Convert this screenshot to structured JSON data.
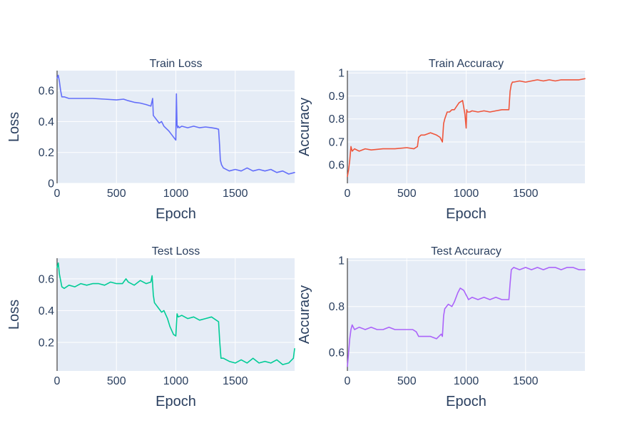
{
  "chart_data": [
    {
      "id": "train_loss",
      "type": "line",
      "title": "Train Loss",
      "xlabel": "Epoch",
      "ylabel": "Loss",
      "xlim": [
        0,
        2000
      ],
      "ylim": [
        0,
        0.73
      ],
      "xticks": [
        0,
        500,
        1000,
        1500
      ],
      "xtick_labels": [
        "0",
        "500",
        "1000",
        "1500"
      ],
      "yticks": [
        0,
        0.2,
        0.4,
        0.6
      ],
      "ytick_labels": [
        "0",
        "0.2",
        "0.4",
        "0.6"
      ],
      "color": "#636efa",
      "series": [
        {
          "x": [
            0,
            10,
            20,
            30,
            40,
            60,
            100,
            150,
            200,
            300,
            400,
            500,
            560,
            600,
            650,
            700,
            750,
            790,
            805,
            810,
            830,
            860,
            880,
            900,
            940,
            960,
            990,
            1000,
            1005,
            1010,
            1015,
            1020,
            1030,
            1050,
            1100,
            1150,
            1200,
            1250,
            1300,
            1340,
            1360,
            1368,
            1375,
            1385,
            1400,
            1450,
            1500,
            1550,
            1600,
            1650,
            1700,
            1750,
            1800,
            1850,
            1900,
            1950,
            2000
          ],
          "y": [
            0.68,
            0.7,
            0.66,
            0.6,
            0.56,
            0.56,
            0.55,
            0.55,
            0.55,
            0.55,
            0.545,
            0.54,
            0.545,
            0.535,
            0.525,
            0.52,
            0.51,
            0.5,
            0.55,
            0.44,
            0.42,
            0.39,
            0.4,
            0.37,
            0.34,
            0.32,
            0.29,
            0.28,
            0.58,
            0.38,
            0.36,
            0.37,
            0.36,
            0.37,
            0.36,
            0.37,
            0.36,
            0.365,
            0.36,
            0.355,
            0.35,
            0.25,
            0.15,
            0.12,
            0.1,
            0.08,
            0.09,
            0.08,
            0.1,
            0.08,
            0.09,
            0.08,
            0.09,
            0.07,
            0.08,
            0.06,
            0.07
          ]
        }
      ]
    },
    {
      "id": "train_acc",
      "type": "line",
      "title": "Train Accuracy",
      "xlabel": "Epoch",
      "ylabel": "Accuracy",
      "xlim": [
        0,
        2000
      ],
      "ylim": [
        0.52,
        1.01
      ],
      "xticks": [
        0,
        500,
        1000,
        1500
      ],
      "xtick_labels": [
        "0",
        "500",
        "1000",
        "1500"
      ],
      "yticks": [
        0.6,
        0.7,
        0.8,
        0.9,
        1.0
      ],
      "ytick_labels": [
        "0.6",
        "0.7",
        "0.8",
        "0.9",
        "1"
      ],
      "color": "#ef553b",
      "series": [
        {
          "x": [
            0,
            10,
            20,
            30,
            40,
            60,
            100,
            150,
            200,
            300,
            400,
            500,
            560,
            590,
            600,
            620,
            650,
            700,
            750,
            780,
            800,
            810,
            820,
            840,
            860,
            880,
            900,
            940,
            970,
            990,
            1000,
            1005,
            1010,
            1030,
            1050,
            1100,
            1150,
            1200,
            1250,
            1300,
            1340,
            1360,
            1370,
            1380,
            1390,
            1400,
            1450,
            1500,
            1550,
            1600,
            1650,
            1700,
            1750,
            1800,
            1850,
            1900,
            1950,
            2000
          ],
          "y": [
            0.55,
            0.58,
            0.62,
            0.68,
            0.66,
            0.67,
            0.66,
            0.67,
            0.665,
            0.67,
            0.67,
            0.675,
            0.67,
            0.68,
            0.72,
            0.73,
            0.73,
            0.74,
            0.73,
            0.72,
            0.7,
            0.78,
            0.8,
            0.83,
            0.83,
            0.84,
            0.84,
            0.87,
            0.88,
            0.82,
            0.76,
            0.84,
            0.83,
            0.83,
            0.835,
            0.83,
            0.835,
            0.83,
            0.835,
            0.84,
            0.84,
            0.84,
            0.92,
            0.95,
            0.96,
            0.96,
            0.965,
            0.96,
            0.965,
            0.97,
            0.965,
            0.97,
            0.965,
            0.97,
            0.97,
            0.97,
            0.97,
            0.975
          ]
        }
      ]
    },
    {
      "id": "test_loss",
      "type": "line",
      "title": "Test Loss",
      "xlabel": "Epoch",
      "ylabel": "Loss",
      "xlim": [
        0,
        2000
      ],
      "ylim": [
        0.02,
        0.73
      ],
      "xticks": [
        0,
        500,
        1000,
        1500
      ],
      "xtick_labels": [
        "0",
        "500",
        "1000",
        "1500"
      ],
      "yticks": [
        0.2,
        0.4,
        0.6
      ],
      "ytick_labels": [
        "0.2",
        "0.4",
        "0.6"
      ],
      "color": "#00cc96",
      "series": [
        {
          "x": [
            0,
            10,
            20,
            40,
            60,
            100,
            150,
            200,
            250,
            300,
            350,
            400,
            450,
            500,
            550,
            580,
            600,
            650,
            700,
            750,
            790,
            800,
            810,
            820,
            850,
            880,
            900,
            930,
            950,
            980,
            1000,
            1010,
            1020,
            1050,
            1100,
            1150,
            1200,
            1250,
            1300,
            1340,
            1360,
            1370,
            1380,
            1400,
            1450,
            1500,
            1550,
            1600,
            1650,
            1700,
            1750,
            1800,
            1850,
            1900,
            1950,
            1990,
            2000
          ],
          "y": [
            0.67,
            0.7,
            0.63,
            0.55,
            0.54,
            0.56,
            0.55,
            0.57,
            0.56,
            0.57,
            0.57,
            0.56,
            0.58,
            0.57,
            0.57,
            0.6,
            0.58,
            0.56,
            0.59,
            0.57,
            0.58,
            0.62,
            0.5,
            0.45,
            0.42,
            0.39,
            0.4,
            0.35,
            0.3,
            0.25,
            0.24,
            0.38,
            0.36,
            0.37,
            0.35,
            0.36,
            0.34,
            0.35,
            0.36,
            0.34,
            0.33,
            0.2,
            0.1,
            0.1,
            0.08,
            0.07,
            0.09,
            0.07,
            0.1,
            0.07,
            0.08,
            0.07,
            0.09,
            0.06,
            0.07,
            0.1,
            0.16
          ]
        }
      ]
    },
    {
      "id": "test_acc",
      "type": "line",
      "title": "Test Accuracy",
      "xlabel": "Epoch",
      "ylabel": "Accuracy",
      "xlim": [
        0,
        2000
      ],
      "ylim": [
        0.52,
        1.01
      ],
      "xticks": [
        0,
        500,
        1000,
        1500
      ],
      "xtick_labels": [
        "0",
        "500",
        "1000",
        "1500"
      ],
      "yticks": [
        0.6,
        0.8,
        1.0
      ],
      "ytick_labels": [
        "0.6",
        "0.8",
        "1"
      ],
      "color": "#ab63fa",
      "series": [
        {
          "x": [
            0,
            10,
            20,
            30,
            40,
            60,
            100,
            150,
            200,
            250,
            300,
            350,
            400,
            450,
            500,
            550,
            580,
            600,
            650,
            700,
            750,
            790,
            800,
            810,
            820,
            850,
            880,
            900,
            930,
            950,
            980,
            1000,
            1010,
            1020,
            1050,
            1100,
            1150,
            1200,
            1250,
            1300,
            1340,
            1360,
            1370,
            1380,
            1400,
            1450,
            1500,
            1550,
            1600,
            1650,
            1700,
            1750,
            1800,
            1850,
            1900,
            1950,
            1990,
            2000
          ],
          "y": [
            0.54,
            0.6,
            0.66,
            0.7,
            0.72,
            0.7,
            0.71,
            0.7,
            0.71,
            0.7,
            0.7,
            0.71,
            0.7,
            0.7,
            0.7,
            0.7,
            0.69,
            0.67,
            0.67,
            0.67,
            0.66,
            0.68,
            0.67,
            0.76,
            0.79,
            0.81,
            0.8,
            0.82,
            0.86,
            0.88,
            0.87,
            0.85,
            0.84,
            0.83,
            0.84,
            0.83,
            0.84,
            0.83,
            0.84,
            0.83,
            0.83,
            0.83,
            0.9,
            0.96,
            0.97,
            0.96,
            0.97,
            0.96,
            0.97,
            0.96,
            0.97,
            0.97,
            0.96,
            0.97,
            0.97,
            0.96,
            0.96,
            0.96
          ]
        }
      ]
    }
  ]
}
